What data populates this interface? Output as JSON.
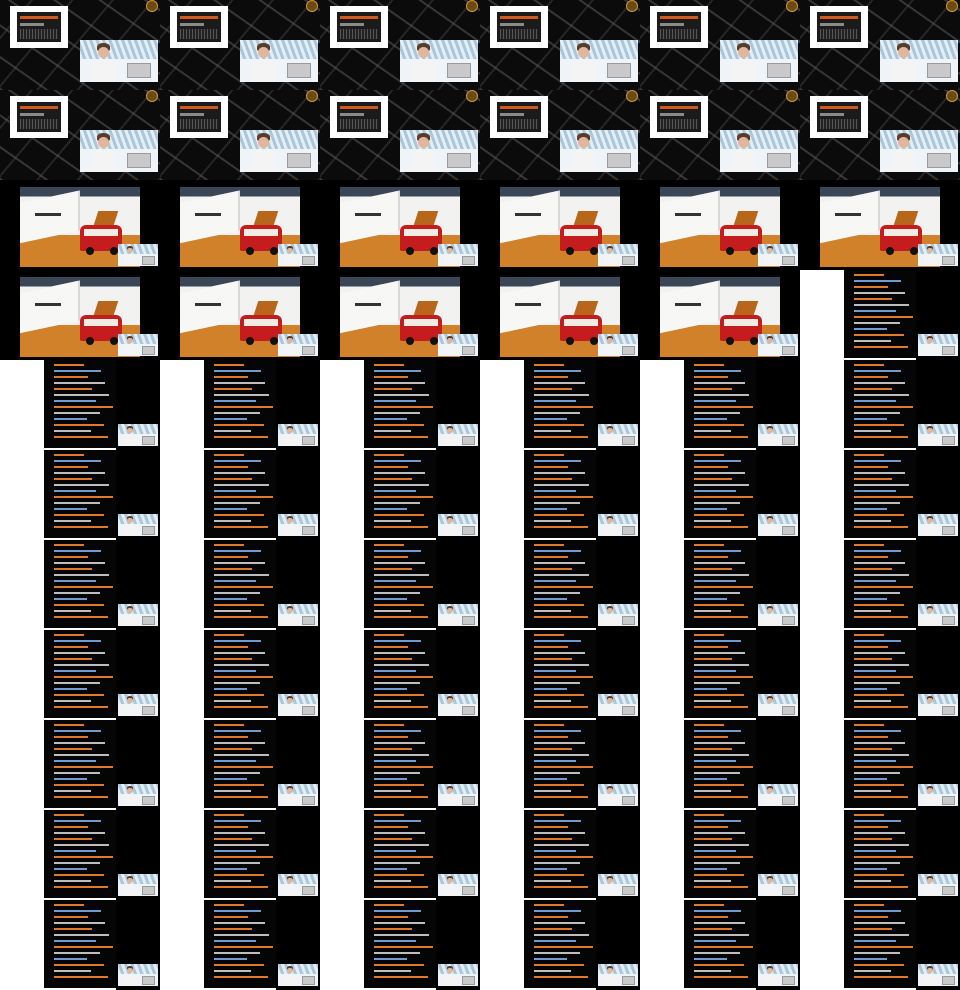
{
  "grid": {
    "columns": 6,
    "rows": 11,
    "frames": [
      "title",
      "title",
      "title",
      "title",
      "title",
      "title",
      "title",
      "title",
      "title",
      "title",
      "title",
      "title",
      "van",
      "van",
      "van",
      "van",
      "van",
      "van",
      "van",
      "van",
      "van",
      "van",
      "van",
      "slides",
      "slides",
      "slides",
      "slides",
      "slides",
      "slides",
      "slides",
      "slides",
      "slides",
      "slides",
      "slides",
      "slides",
      "slides",
      "slides",
      "slides",
      "slides",
      "slides",
      "slides",
      "slides",
      "slides",
      "slides",
      "slides",
      "slides",
      "slides",
      "slides",
      "slides",
      "slides",
      "slides",
      "slides",
      "slides",
      "slides",
      "slides",
      "slides",
      "slides",
      "slides",
      "slides",
      "slides",
      "slides",
      "slides",
      "slides",
      "slides",
      "slides",
      "slides"
    ]
  },
  "colors": {
    "background": "#000000",
    "logo_accent": "#d35a1c",
    "van_red": "#c51d1d",
    "floor_orange": "#d2812b",
    "slide_text_orange": "#e07a2a",
    "slide_text_blue": "#6f9bd1"
  },
  "icons": {
    "title_frame": "event-logo-icon",
    "badge": "seal-icon",
    "speaker": "speaker-thumbnail-icon"
  }
}
